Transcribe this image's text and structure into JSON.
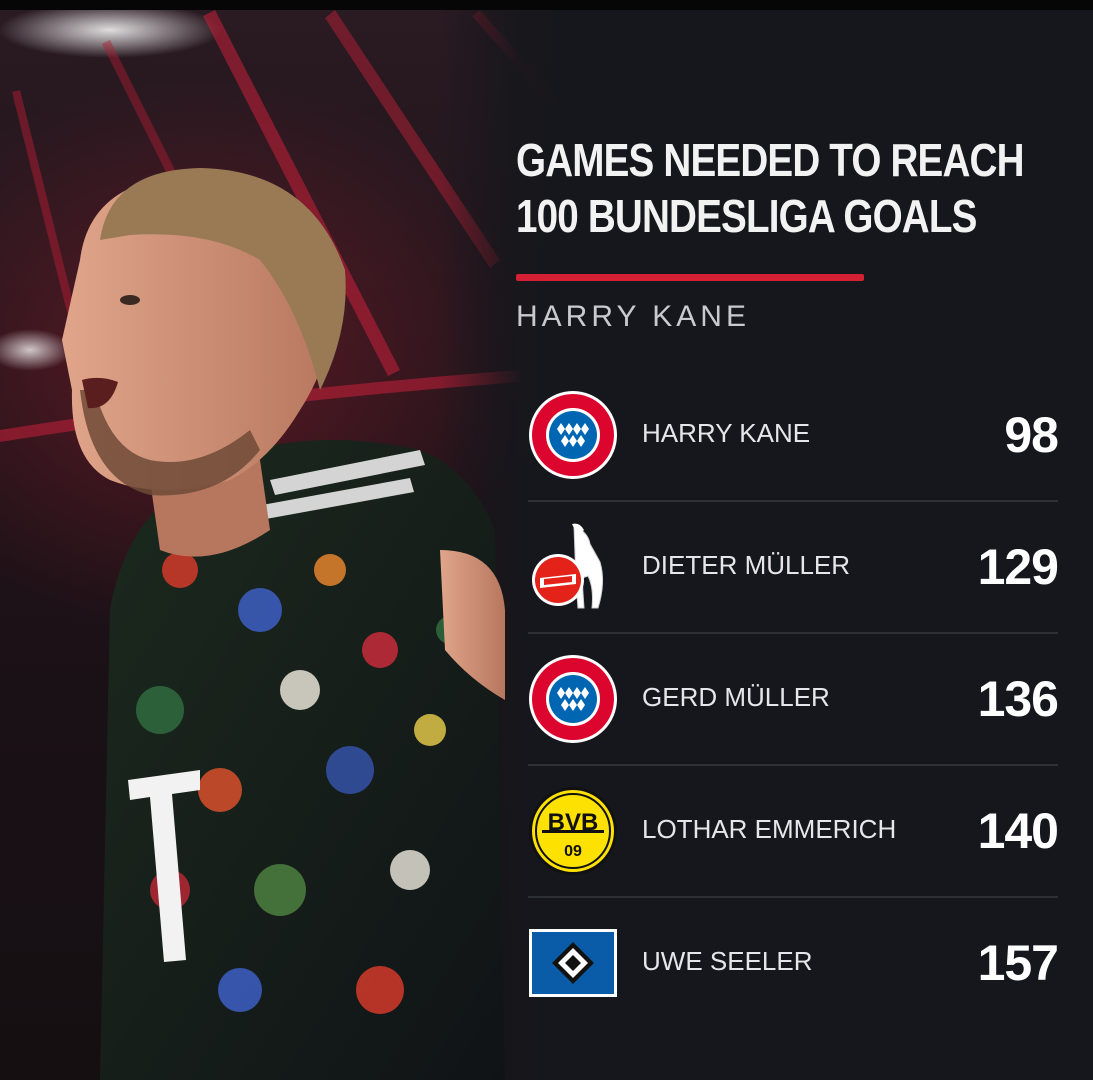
{
  "headline": {
    "line1": "GAMES NEEDED TO REACH",
    "line2": "100 BUNDESLIGA GOALS"
  },
  "subtitle": "HARRY KANE",
  "colors": {
    "accent": "#d51f33",
    "background": "#16171c"
  },
  "rows": [
    {
      "name": "HARRY KANE",
      "games": "98",
      "club_icon": "fc-bayern-munchen-crest-icon",
      "crest_text": "FC BAYERN MÜNCHEN"
    },
    {
      "name": "DIETER MÜLLER",
      "games": "129",
      "club_icon": "1-fc-koln-crest-icon",
      "crest_text": "1.FC KÖLN"
    },
    {
      "name": "GERD MÜLLER",
      "games": "136",
      "club_icon": "fc-bayern-munchen-crest-icon",
      "crest_text": "FC BAYERN MÜNCHEN"
    },
    {
      "name": "LOTHAR EMMERICH",
      "games": "140",
      "club_icon": "bvb-09-crest-icon",
      "crest_text": "BVB 09"
    },
    {
      "name": "UWE SEELER",
      "games": "157",
      "club_icon": "hamburger-sv-crest-icon",
      "crest_text": ""
    }
  ]
}
